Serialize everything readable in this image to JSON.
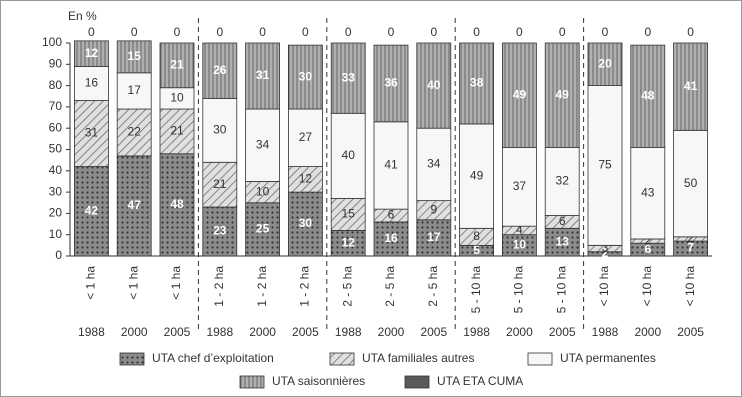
{
  "chart_data": {
    "type": "stacked_bar",
    "y_label": "En %",
    "categories": [
      "< 1 ha",
      "< 1 ha",
      "< 1 ha",
      "1 - 2 ha",
      "1 - 2 ha",
      "1 - 2 ha",
      "2 - 5 ha",
      "2 - 5 ha",
      "2 - 5 ha",
      "5 - 10 ha",
      "5 - 10 ha",
      "5 - 10 ha",
      "< 10 ha",
      "< 10 ha",
      "< 10 ha"
    ],
    "years": [
      "1988",
      "2000",
      "2005",
      "1988",
      "2000",
      "2005",
      "1988",
      "2000",
      "2005",
      "1988",
      "2000",
      "2005",
      "1988",
      "2000",
      "2005"
    ],
    "ylim": [
      0,
      100
    ],
    "yticks": [
      0,
      10,
      20,
      30,
      40,
      50,
      60,
      70,
      80,
      90,
      100
    ],
    "series": [
      {
        "name": "UTA chef d’exploitation",
        "color": "#8c8c8c",
        "pattern": "dots",
        "label_color": "#ffffff",
        "values": [
          42,
          47,
          48,
          23,
          25,
          30,
          12,
          16,
          17,
          5,
          10,
          13,
          2,
          6,
          7
        ]
      },
      {
        "name": "UTA familiales autres",
        "color": "#d9d9d9",
        "pattern": "hatch",
        "label_color": "#333333",
        "values": [
          31,
          22,
          21,
          21,
          10,
          12,
          15,
          6,
          9,
          8,
          4,
          6,
          3,
          2,
          2
        ]
      },
      {
        "name": "UTA permanentes",
        "color": "#f7f7f7",
        "pattern": "none",
        "label_color": "#333333",
        "values": [
          16,
          17,
          10,
          30,
          34,
          27,
          40,
          41,
          34,
          49,
          37,
          32,
          75,
          43,
          50
        ]
      },
      {
        "name": "UTA saisonnières",
        "color": "#9a9a9a",
        "pattern": "vertical",
        "label_color": "#ffffff",
        "values": [
          12,
          15,
          21,
          26,
          31,
          30,
          33,
          36,
          40,
          38,
          49,
          49,
          20,
          48,
          41
        ]
      },
      {
        "name": "UTA ETA CUMA",
        "color": "#5a5a5a",
        "pattern": "none",
        "label_color": "#333333",
        "values": [
          0,
          0,
          0,
          0,
          0,
          0,
          0,
          0,
          0,
          0,
          0,
          0,
          0,
          0,
          0
        ]
      }
    ]
  }
}
